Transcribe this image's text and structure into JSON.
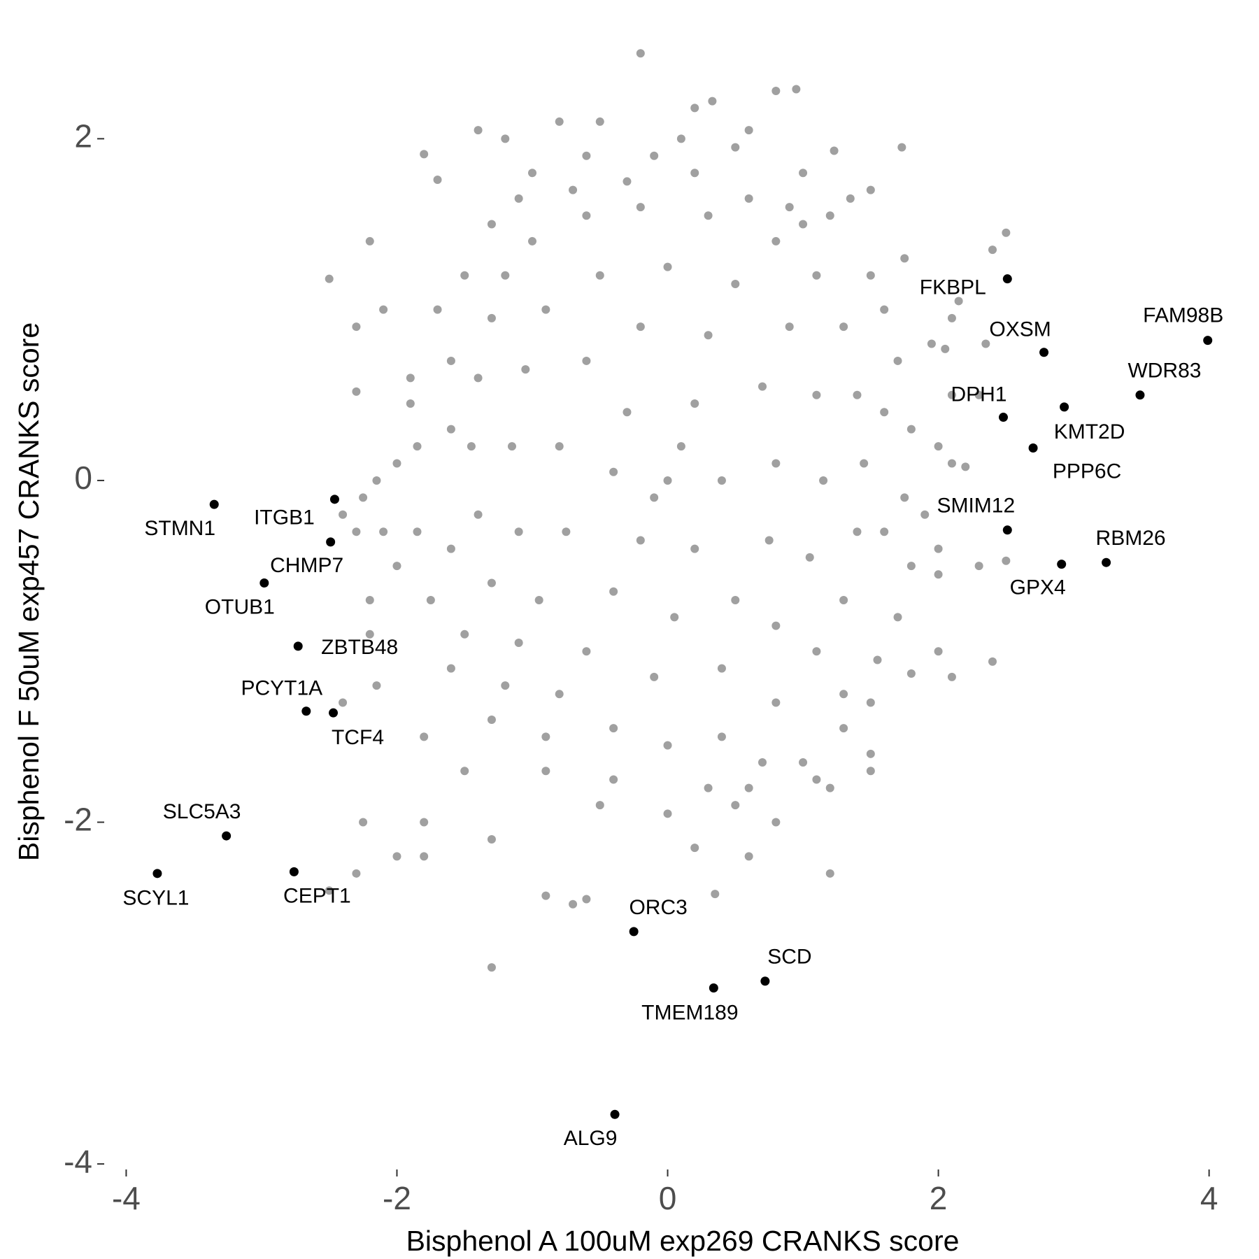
{
  "chart_data": {
    "type": "scatter",
    "x_label": "Bisphenol A 100uM exp269 CRANKS score",
    "y_label": "Bisphenol F 50uM exp457 CRANKS score",
    "xlim": [
      -4.09,
      4.1
    ],
    "ylim": [
      -4.02,
      2.55
    ],
    "xticks": [
      -4,
      -2,
      0,
      2,
      4
    ],
    "yticks": [
      -4,
      -2,
      0,
      2
    ],
    "series": [
      {
        "color": "#a0a0a0",
        "x": [
          -0.2,
          0.8,
          0.95,
          0.33,
          0.2,
          -0.5,
          -1.2,
          -0.8,
          1.73,
          1.23,
          -1.4,
          -1.8,
          -1.7,
          -0.6,
          0.6,
          0.5,
          1.0,
          -2.2,
          -2.5,
          -2.1,
          -2.3,
          -2.3,
          2.5,
          2.4,
          1.5,
          1.35,
          -1.1,
          1.75,
          2.15,
          2.1,
          1.95,
          2.05,
          2.35,
          2.1,
          2.3,
          2.0,
          2.1,
          2.2,
          2.5,
          2.3,
          2.0,
          2.0,
          1.9,
          2.0,
          2.1,
          2.4,
          1.8,
          1.5,
          1.5,
          1.2,
          1.5,
          1.1,
          0.8,
          1.2,
          0.35,
          0.6,
          0.2,
          -0.6,
          -0.7,
          -0.9,
          -1.3,
          -1.3,
          -1.8,
          -1.8,
          -2.0,
          -2.3,
          -2.5,
          -2.25,
          -2.15,
          -2.4,
          -1.5,
          -1.8,
          -2.2,
          -2.2,
          -2.0,
          -2.1,
          -2.3,
          -2.4,
          -2.15,
          -2.25,
          -2.0,
          -1.9,
          -1.9,
          -1.6,
          -1.7,
          -1.5,
          -1.3,
          -1.0,
          -0.3,
          0.2,
          0.6,
          1.2,
          1.5,
          1.6,
          1.7,
          1.8,
          1.75,
          1.8,
          1.7,
          1.55,
          1.3,
          1.0,
          0.5,
          0.0,
          -0.5,
          -0.9,
          -1.3,
          -1.6,
          -1.75,
          -1.85,
          -1.85,
          -1.2,
          -1.0,
          -0.6,
          -0.2,
          0.3,
          0.8,
          1.1,
          1.3,
          1.4,
          1.45,
          1.4,
          1.3,
          1.1,
          0.8,
          0.4,
          0.0,
          -0.4,
          -0.8,
          -1.1,
          -1.3,
          -1.4,
          -1.45,
          -1.4,
          -1.3,
          -0.9,
          -0.5,
          0.0,
          0.5,
          0.9,
          1.1,
          1.15,
          1.05,
          0.8,
          0.4,
          -0.1,
          -0.6,
          -0.95,
          -1.1,
          -1.15,
          -1.05,
          -0.6,
          -0.2,
          0.3,
          0.7,
          0.8,
          0.75,
          0.5,
          0.05,
          -0.4,
          -0.75,
          -0.8,
          -0.3,
          0.2,
          0.4,
          0.2,
          -0.2,
          -0.4,
          0.0,
          0.1,
          -0.1,
          -1.6,
          -1.6,
          1.6,
          1.6,
          -0.4,
          0.3,
          0.7,
          -0.7,
          0.1,
          -0.1,
          0.9,
          -1.5,
          1.3,
          -1.2,
          1.0,
          -0.9,
          0.6
        ],
        "y": [
          2.5,
          2.28,
          2.29,
          2.22,
          2.18,
          2.1,
          2.0,
          2.1,
          1.95,
          1.93,
          2.05,
          1.91,
          1.76,
          1.9,
          2.05,
          1.95,
          1.8,
          1.4,
          1.18,
          1.0,
          0.9,
          0.52,
          1.45,
          1.35,
          1.7,
          1.65,
          1.65,
          1.3,
          1.05,
          0.95,
          0.8,
          0.77,
          0.8,
          0.5,
          0.5,
          0.2,
          0.1,
          0.08,
          -0.47,
          -0.5,
          -0.55,
          -0.4,
          -0.2,
          -1.0,
          -1.15,
          -1.06,
          -1.13,
          -1.3,
          -1.6,
          -1.8,
          -1.7,
          -1.75,
          -2.0,
          -2.3,
          -2.42,
          -2.2,
          -2.15,
          -2.45,
          -2.48,
          -2.43,
          -2.85,
          -2.1,
          -2.0,
          -2.2,
          -2.2,
          -2.3,
          -2.4,
          -2.0,
          -1.2,
          -1.3,
          -1.7,
          -1.5,
          -0.9,
          -0.7,
          -0.5,
          -0.3,
          -0.3,
          -0.2,
          0.0,
          -0.1,
          0.1,
          0.45,
          0.6,
          0.7,
          1.0,
          1.2,
          1.5,
          1.8,
          1.75,
          1.8,
          1.65,
          1.55,
          1.2,
          1.0,
          0.7,
          0.3,
          -0.1,
          -0.5,
          -0.8,
          -1.05,
          -1.45,
          -1.65,
          -1.9,
          -1.95,
          -1.9,
          -1.7,
          -1.4,
          -1.1,
          -0.7,
          -0.3,
          0.2,
          1.2,
          1.4,
          1.55,
          1.6,
          1.55,
          1.4,
          1.2,
          0.9,
          0.5,
          0.1,
          -0.3,
          -0.7,
          -1.0,
          -1.3,
          -1.5,
          -1.55,
          -1.45,
          -1.25,
          -0.95,
          -0.6,
          -0.2,
          0.2,
          0.6,
          0.95,
          1.0,
          1.2,
          1.25,
          1.15,
          0.9,
          0.5,
          0.0,
          -0.45,
          -0.85,
          -1.1,
          -1.15,
          -1.0,
          -0.7,
          -0.3,
          0.2,
          0.65,
          0.7,
          0.9,
          0.85,
          0.55,
          0.1,
          -0.35,
          -0.7,
          -0.8,
          -0.65,
          -0.3,
          0.2,
          0.4,
          0.45,
          0.0,
          -0.4,
          -0.35,
          0.05,
          0.0,
          0.2,
          -0.1,
          -0.4,
          0.3,
          0.4,
          -0.3,
          -1.75,
          -1.8,
          -1.65,
          1.7,
          2.0,
          1.9,
          1.6,
          -0.9,
          -1.25,
          -1.2,
          1.5,
          -1.5,
          -1.8
        ]
      },
      {
        "color": "#000000",
        "labels": [
          "FKBPL",
          "OXSM",
          "FAM98B",
          "WDR83",
          "DPH1",
          "KMT2D",
          "PPP6C",
          "SMIM12",
          "RBM26",
          "GPX4",
          "STMN1",
          "ITGB1",
          "CHMP7",
          "OTUB1",
          "ZBTB48",
          "PCYT1A",
          "TCF4",
          "SLC5A3",
          "SCYL1",
          "CEPT1",
          "ORC3",
          "SCD",
          "TMEM189",
          "ALG9"
        ],
        "x": [
          2.51,
          2.78,
          3.99,
          3.49,
          2.48,
          2.93,
          2.7,
          2.51,
          3.24,
          2.91,
          -3.35,
          -2.46,
          -2.49,
          -2.98,
          -2.73,
          -2.67,
          -2.47,
          -3.26,
          -3.77,
          -2.76,
          -0.25,
          0.72,
          0.34,
          -0.39
        ],
        "y": [
          1.18,
          0.75,
          0.82,
          0.5,
          0.37,
          0.43,
          0.19,
          -0.29,
          -0.48,
          -0.49,
          -0.14,
          -0.11,
          -0.36,
          -0.6,
          -0.97,
          -1.35,
          -1.36,
          -2.08,
          -2.3,
          -2.29,
          -2.64,
          -2.93,
          -2.97,
          -3.71
        ]
      }
    ]
  }
}
